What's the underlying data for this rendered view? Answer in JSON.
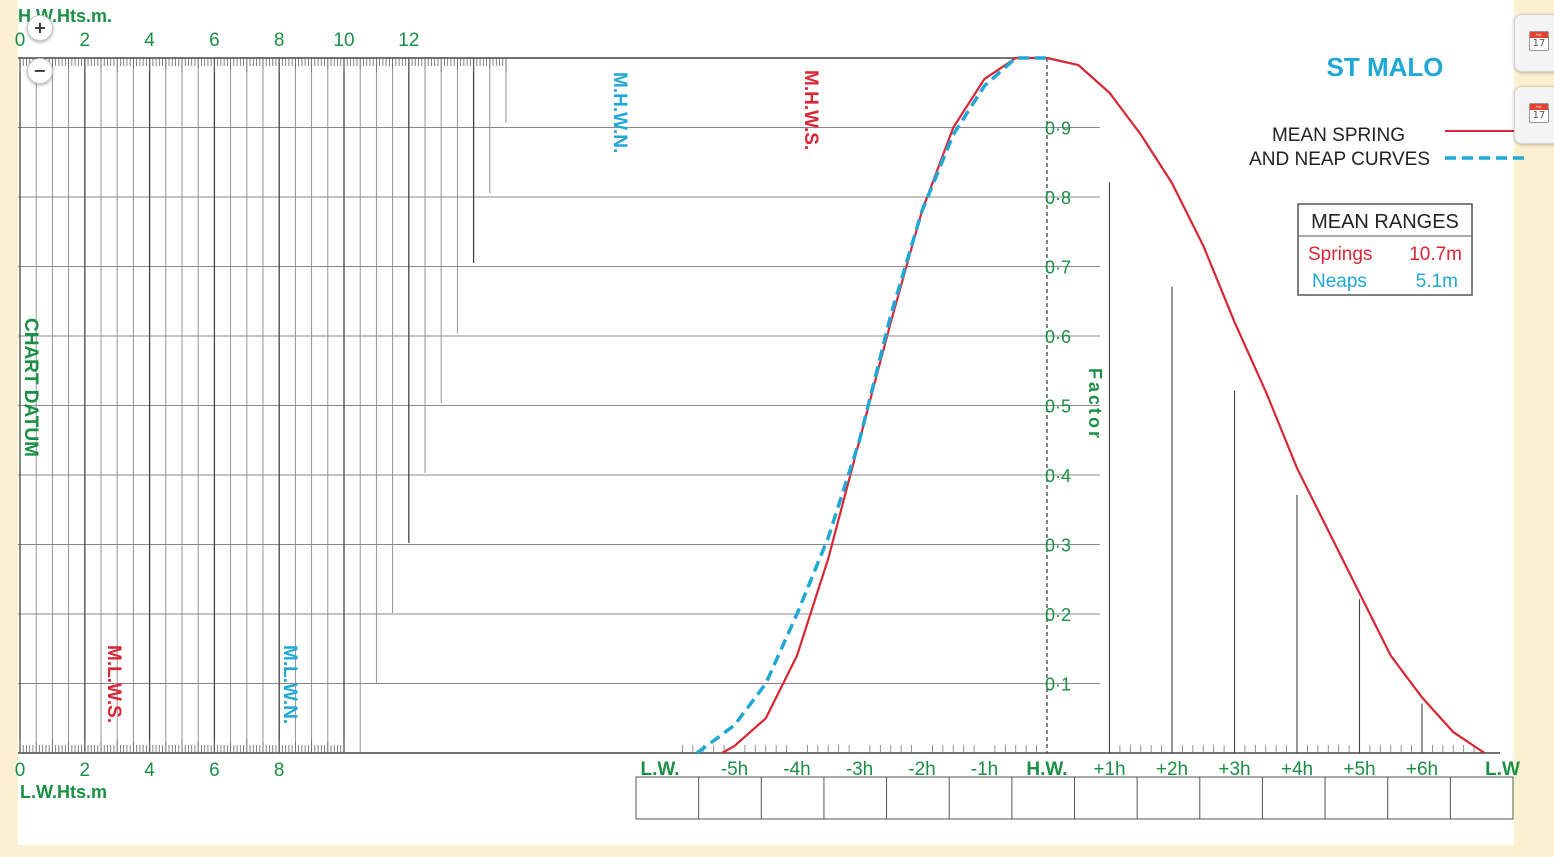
{
  "title": "ST MALO",
  "axes": {
    "hw_heights_label": "H.W.Hts.m.",
    "lw_heights_label": "L.W.Hts.m",
    "chart_datum_label": "CHART DATUM",
    "factor_label": "Factor",
    "hw_ticks": [
      "0",
      "2",
      "4",
      "6",
      "8",
      "10",
      "12"
    ],
    "lw_ticks": [
      "0",
      "2",
      "4",
      "6",
      "8"
    ],
    "factor_ticks": [
      "0·1",
      "0·2",
      "0·3",
      "0·4",
      "0·5",
      "0·6",
      "0·7",
      "0·8",
      "0·9"
    ],
    "time_ticks": [
      "L.W.",
      "-5h",
      "-4h",
      "-3h",
      "-2h",
      "-1h",
      "H.W.",
      "+1h",
      "+2h",
      "+3h",
      "+4h",
      "+5h",
      "+6h",
      "L.W"
    ]
  },
  "markers": {
    "mhwn": "M.H.W.N.",
    "mhws": "M.H.W.S.",
    "mlws": "M.L.W.S.",
    "mlwn": "M.L.W.N."
  },
  "legend": {
    "line1": "MEAN SPRING",
    "line2": "AND NEAP CURVES"
  },
  "mean_ranges": {
    "title": "MEAN RANGES",
    "springs_label": "Springs",
    "springs_value": "10.7m",
    "neaps_label": "Neaps",
    "neaps_value": "5.1m"
  },
  "colors": {
    "spring": "#d92634",
    "neap": "#1fa8d6",
    "green": "#1a9045",
    "grid": "#555555",
    "background": "#fbf0cf"
  },
  "controls": {
    "zoom_in": "+",
    "zoom_out": "−",
    "calendar_month": "JUL",
    "calendar_day": "17"
  },
  "chart_data": {
    "type": "line",
    "xlabel": "",
    "ylabel": "Factor",
    "x": [
      "L.W.",
      "-5h",
      "-4h",
      "-3h",
      "-2h",
      "-1h",
      "H.W.",
      "+1h",
      "+2h",
      "+3h",
      "+4h",
      "+5h",
      "+6h",
      "L.W"
    ],
    "ylim": [
      0,
      1
    ],
    "series": [
      {
        "name": "MEAN SPRING",
        "points": [
          [
            -5.2,
            0.0
          ],
          [
            -5.0,
            0.01
          ],
          [
            -4.5,
            0.05
          ],
          [
            -4.0,
            0.14
          ],
          [
            -3.5,
            0.28
          ],
          [
            -3.0,
            0.45
          ],
          [
            -2.5,
            0.62
          ],
          [
            -2.0,
            0.78
          ],
          [
            -1.5,
            0.9
          ],
          [
            -1.0,
            0.97
          ],
          [
            -0.5,
            1.0
          ],
          [
            0.0,
            1.0
          ],
          [
            0.5,
            0.99
          ],
          [
            1.0,
            0.95
          ],
          [
            1.5,
            0.89
          ],
          [
            2.0,
            0.82
          ],
          [
            2.5,
            0.73
          ],
          [
            3.0,
            0.62
          ],
          [
            3.5,
            0.52
          ],
          [
            4.0,
            0.41
          ],
          [
            4.5,
            0.32
          ],
          [
            5.0,
            0.23
          ],
          [
            5.5,
            0.14
          ],
          [
            6.0,
            0.08
          ],
          [
            6.5,
            0.03
          ],
          [
            7.0,
            0.0
          ]
        ]
      },
      {
        "name": "NEAP",
        "points": [
          [
            -5.6,
            0.0
          ],
          [
            -5.3,
            0.02
          ],
          [
            -5.0,
            0.04
          ],
          [
            -4.5,
            0.1
          ],
          [
            -4.0,
            0.2
          ],
          [
            -3.5,
            0.31
          ],
          [
            -3.0,
            0.45
          ],
          [
            -2.5,
            0.63
          ],
          [
            -2.0,
            0.78
          ],
          [
            -1.5,
            0.89
          ],
          [
            -1.0,
            0.96
          ],
          [
            -0.5,
            1.0
          ],
          [
            0.0,
            1.0
          ]
        ]
      }
    ]
  }
}
